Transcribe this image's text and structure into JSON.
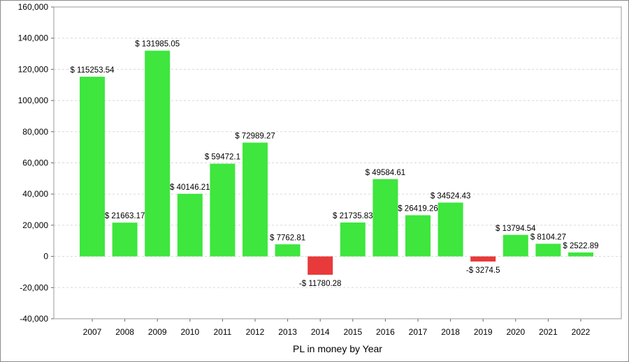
{
  "chart_data": {
    "type": "bar",
    "title": "",
    "xlabel": "PL in money by Year",
    "ylabel": "",
    "ylim": [
      -40000,
      160000
    ],
    "y_ticks": [
      "-40,000",
      "-20,000",
      "0",
      "20,000",
      "40,000",
      "60,000",
      "80,000",
      "100,000",
      "120,000",
      "140,000",
      "160,000"
    ],
    "y_tick_values": [
      -40000,
      -20000,
      0,
      20000,
      40000,
      60000,
      80000,
      100000,
      120000,
      140000,
      160000
    ],
    "grid": true,
    "categories": [
      "2007",
      "2008",
      "2009",
      "2010",
      "2011",
      "2012",
      "2013",
      "2014",
      "2015",
      "2016",
      "2017",
      "2018",
      "2019",
      "2020",
      "2021",
      "2022"
    ],
    "values": [
      115253.54,
      21663.17,
      131985.05,
      40146.21,
      59472.1,
      72989.27,
      7762.81,
      -11780.28,
      21735.83,
      49584.61,
      26419.26,
      34524.43,
      -3274.5,
      13794.54,
      8104.27,
      2522.89
    ],
    "labels": [
      "$ 115253.54",
      "$ 21663.17",
      "$ 131985.05",
      "$ 40146.21",
      "$ 59472.1",
      "$ 72989.27",
      "$ 7762.81",
      "-$ 11780.28",
      "$ 21735.83",
      "$ 49584.61",
      "$ 26419.26",
      "$ 34524.43",
      "-$ 3274.5",
      "$ 13794.54",
      "$ 8104.27",
      "$ 2522.89"
    ],
    "colors": {
      "positive": "#3ee63e",
      "negative": "#e83a3a"
    }
  }
}
